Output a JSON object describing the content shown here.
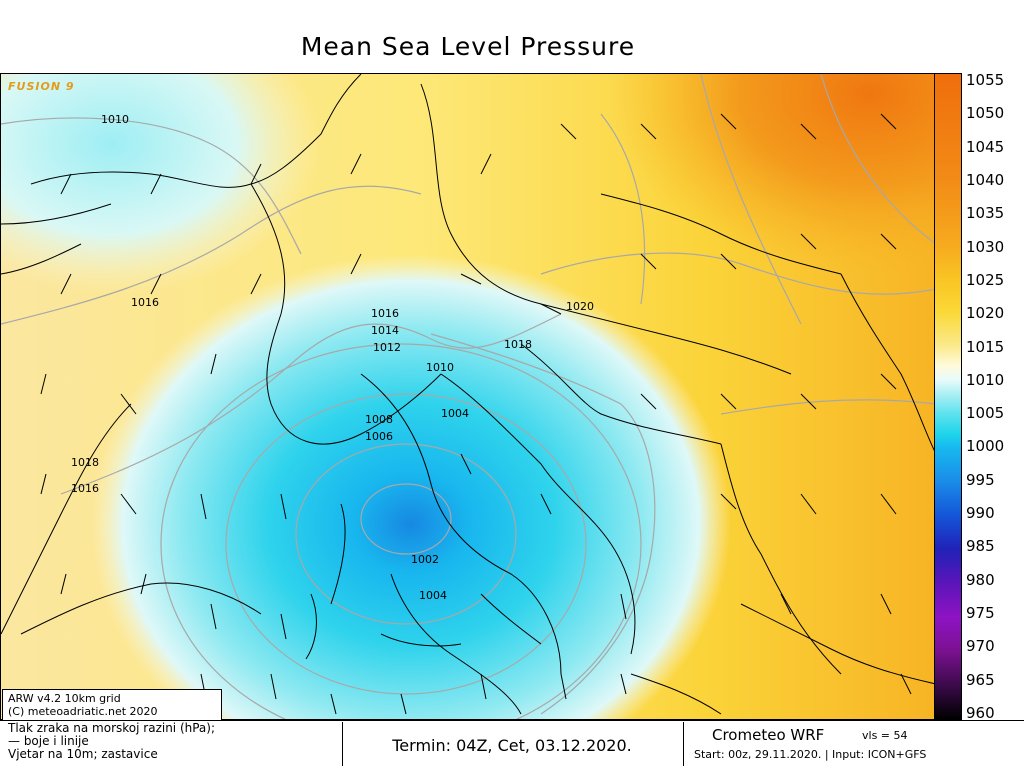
{
  "title": "Mean Sea Level Pressure",
  "branding": {
    "fusion_tag": "FUSION 9"
  },
  "colorbar": {
    "unit": "hPa",
    "labels": [
      "1055",
      "1050",
      "1045",
      "1040",
      "1035",
      "1030",
      "1025",
      "1020",
      "1015",
      "1010",
      "1005",
      "1000",
      "995",
      "990",
      "985",
      "980",
      "975",
      "970",
      "965",
      "960"
    ],
    "colors": {
      "1055": "#f06e0c",
      "1040": "#f28a16",
      "1030": "#f6a91e",
      "1025": "#f9c323",
      "1020": "#fbd836",
      "1015": "#fbe98c",
      "1012": "#fffbdc",
      "1010": "#e8fbfb",
      "1008": "#b0f0f4",
      "1005": "#5fe2ee",
      "1002": "#1fd5ea",
      "1000": "#17b9ef",
      "995": "#1a8ce8",
      "990": "#1456d8",
      "985": "#2022b8",
      "980": "#5b15b8",
      "975": "#8e13c4",
      "970": "#7b1190",
      "965": "#3b0a4a",
      "960": "#000000"
    }
  },
  "isobar_labels": [
    "1010",
    "1016",
    "1018",
    "1016",
    "1016",
    "1014",
    "1012",
    "1010",
    "1008",
    "1006",
    "1004",
    "1002",
    "1004",
    "1018",
    "1020"
  ],
  "credits": {
    "line1": "ARW v4.2 10km grid",
    "line2": "(C) meteoadriatic.net 2020"
  },
  "legend": {
    "line1": "Tlak zraka na morskoj razini (hPa);",
    "line2": "— boje i linije",
    "line3": "Vjetar na 10m; zastavice"
  },
  "termin": "Termin: 04Z, Cet, 03.12.2020.",
  "model": {
    "name": "Crometeo WRF",
    "vls": "vls = 54",
    "start": "Start: 00z, 29.11.2020.  |  Input: ICON+GFS"
  }
}
